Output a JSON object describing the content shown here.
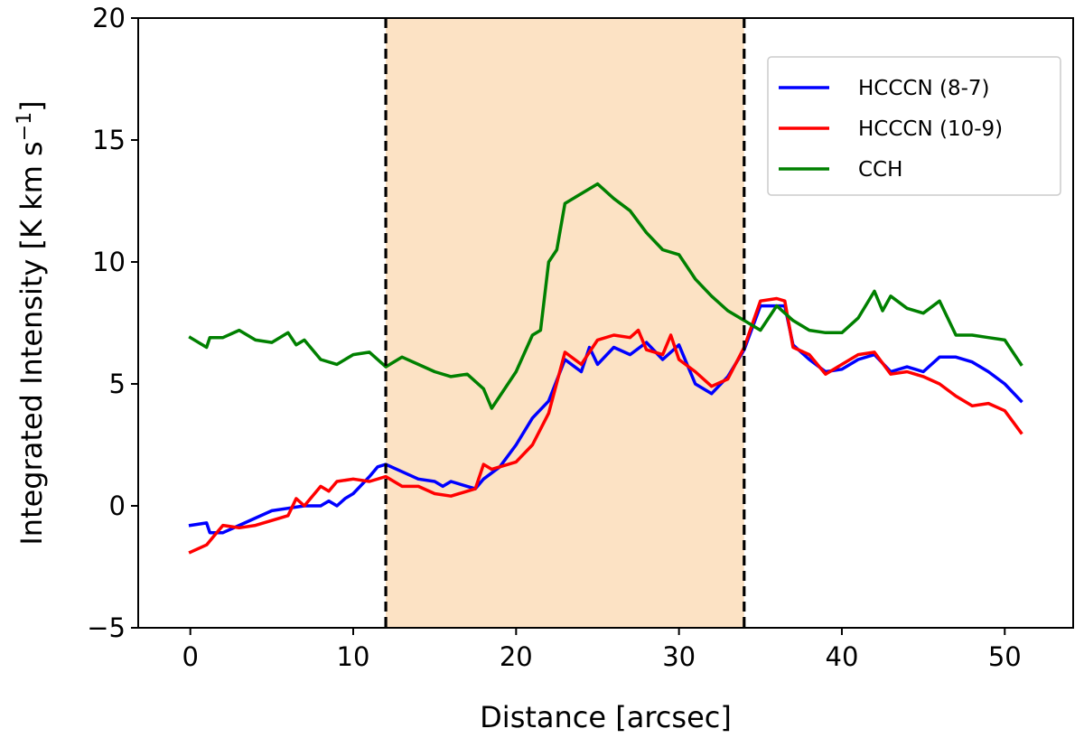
{
  "chart_data": {
    "type": "line",
    "xlabel": "Distance [arcsec]",
    "ylabel_main": "Integrated Intensity [K km s",
    "ylabel_sup": "−1",
    "ylabel_close": "]",
    "xlim": [
      -3.2,
      54.2
    ],
    "ylim": [
      -5,
      20
    ],
    "xticks": [
      0,
      10,
      20,
      30,
      40,
      50
    ],
    "yticks": [
      -5,
      0,
      5,
      10,
      15,
      20
    ],
    "ytick_labels": [
      "−5",
      "0",
      "5",
      "10",
      "15",
      "20"
    ],
    "grid": false,
    "legend_position": "upper-right",
    "shaded_region": {
      "x": [
        12,
        34
      ],
      "color": "#fce2c4"
    },
    "vlines": [
      {
        "x": 12,
        "style": "dashed",
        "color": "#000000"
      },
      {
        "x": 34,
        "style": "dashed",
        "color": "#000000"
      }
    ],
    "series": [
      {
        "name": "HCCCN (8-7)",
        "color": "#0000ff",
        "points": [
          [
            0,
            -0.8
          ],
          [
            1,
            -0.7
          ],
          [
            1.2,
            -1.1
          ],
          [
            2,
            -1.1
          ],
          [
            3,
            -0.8
          ],
          [
            4,
            -0.5
          ],
          [
            5,
            -0.2
          ],
          [
            6,
            -0.1
          ],
          [
            7,
            0.0
          ],
          [
            8,
            0.0
          ],
          [
            8.5,
            0.2
          ],
          [
            9,
            0.0
          ],
          [
            9.5,
            0.3
          ],
          [
            10,
            0.5
          ],
          [
            11,
            1.2
          ],
          [
            11.5,
            1.6
          ],
          [
            12,
            1.7
          ],
          [
            13,
            1.4
          ],
          [
            14,
            1.1
          ],
          [
            15,
            1.0
          ],
          [
            15.5,
            0.8
          ],
          [
            16,
            1.0
          ],
          [
            17,
            0.8
          ],
          [
            17.5,
            0.7
          ],
          [
            18,
            1.1
          ],
          [
            19,
            1.6
          ],
          [
            20,
            2.5
          ],
          [
            21,
            3.6
          ],
          [
            22,
            4.3
          ],
          [
            23,
            6.0
          ],
          [
            24,
            5.5
          ],
          [
            24.5,
            6.5
          ],
          [
            25,
            5.8
          ],
          [
            26,
            6.5
          ],
          [
            27,
            6.2
          ],
          [
            28,
            6.7
          ],
          [
            29,
            6.0
          ],
          [
            30,
            6.6
          ],
          [
            31,
            5.0
          ],
          [
            32,
            4.6
          ],
          [
            33,
            5.3
          ],
          [
            34,
            6.4
          ],
          [
            35,
            8.2
          ],
          [
            36,
            8.2
          ],
          [
            36.5,
            8.2
          ],
          [
            37,
            6.6
          ],
          [
            38,
            6.0
          ],
          [
            39,
            5.5
          ],
          [
            40,
            5.6
          ],
          [
            41,
            6.0
          ],
          [
            42,
            6.2
          ],
          [
            43,
            5.5
          ],
          [
            44,
            5.7
          ],
          [
            45,
            5.5
          ],
          [
            46,
            6.1
          ],
          [
            47,
            6.1
          ],
          [
            48,
            5.9
          ],
          [
            49,
            5.5
          ],
          [
            50,
            5.0
          ],
          [
            51,
            4.3
          ]
        ]
      },
      {
        "name": "HCCCN (10-9)",
        "color": "#ff0000",
        "points": [
          [
            0,
            -1.9
          ],
          [
            1,
            -1.6
          ],
          [
            1.5,
            -1.2
          ],
          [
            2,
            -0.8
          ],
          [
            3,
            -0.9
          ],
          [
            4,
            -0.8
          ],
          [
            5,
            -0.6
          ],
          [
            6,
            -0.4
          ],
          [
            6.5,
            0.3
          ],
          [
            7,
            0.0
          ],
          [
            8,
            0.8
          ],
          [
            8.5,
            0.6
          ],
          [
            9,
            1.0
          ],
          [
            10,
            1.1
          ],
          [
            11,
            1.0
          ],
          [
            12,
            1.2
          ],
          [
            13,
            0.8
          ],
          [
            14,
            0.8
          ],
          [
            15,
            0.5
          ],
          [
            16,
            0.4
          ],
          [
            17,
            0.6
          ],
          [
            17.5,
            0.7
          ],
          [
            18,
            1.7
          ],
          [
            18.5,
            1.5
          ],
          [
            19,
            1.6
          ],
          [
            20,
            1.8
          ],
          [
            21,
            2.5
          ],
          [
            22,
            3.8
          ],
          [
            23,
            6.3
          ],
          [
            24,
            5.8
          ],
          [
            25,
            6.8
          ],
          [
            26,
            7.0
          ],
          [
            27,
            6.9
          ],
          [
            27.5,
            7.2
          ],
          [
            28,
            6.4
          ],
          [
            29,
            6.2
          ],
          [
            29.5,
            7.0
          ],
          [
            30,
            6.0
          ],
          [
            31,
            5.5
          ],
          [
            32,
            4.9
          ],
          [
            33,
            5.2
          ],
          [
            34,
            6.5
          ],
          [
            35,
            8.4
          ],
          [
            36,
            8.5
          ],
          [
            36.5,
            8.4
          ],
          [
            37,
            6.5
          ],
          [
            38,
            6.2
          ],
          [
            39,
            5.4
          ],
          [
            40,
            5.8
          ],
          [
            41,
            6.2
          ],
          [
            42,
            6.3
          ],
          [
            43,
            5.4
          ],
          [
            44,
            5.5
          ],
          [
            45,
            5.3
          ],
          [
            46,
            5.0
          ],
          [
            47,
            4.5
          ],
          [
            48,
            4.1
          ],
          [
            49,
            4.2
          ],
          [
            50,
            3.9
          ],
          [
            51,
            3.0
          ]
        ]
      },
      {
        "name": "CCH",
        "color": "#008000",
        "points": [
          [
            0,
            6.9
          ],
          [
            1,
            6.5
          ],
          [
            1.2,
            6.9
          ],
          [
            2,
            6.9
          ],
          [
            3,
            7.2
          ],
          [
            4,
            6.8
          ],
          [
            5,
            6.7
          ],
          [
            6,
            7.1
          ],
          [
            6.5,
            6.6
          ],
          [
            7,
            6.8
          ],
          [
            8,
            6.0
          ],
          [
            9,
            5.8
          ],
          [
            10,
            6.2
          ],
          [
            11,
            6.3
          ],
          [
            12,
            5.7
          ],
          [
            13,
            6.1
          ],
          [
            14,
            5.8
          ],
          [
            15,
            5.5
          ],
          [
            16,
            5.3
          ],
          [
            17,
            5.4
          ],
          [
            18,
            4.8
          ],
          [
            18.5,
            4.0
          ],
          [
            19,
            4.5
          ],
          [
            20,
            5.5
          ],
          [
            21,
            7.0
          ],
          [
            21.5,
            7.2
          ],
          [
            22,
            10.0
          ],
          [
            22.5,
            10.5
          ],
          [
            23,
            12.4
          ],
          [
            24,
            12.8
          ],
          [
            25,
            13.2
          ],
          [
            26,
            12.6
          ],
          [
            27,
            12.1
          ],
          [
            28,
            11.2
          ],
          [
            29,
            10.5
          ],
          [
            30,
            10.3
          ],
          [
            31,
            9.3
          ],
          [
            32,
            8.6
          ],
          [
            33,
            8.0
          ],
          [
            34,
            7.6
          ],
          [
            35,
            7.2
          ],
          [
            36,
            8.2
          ],
          [
            37,
            7.6
          ],
          [
            38,
            7.2
          ],
          [
            39,
            7.1
          ],
          [
            40,
            7.1
          ],
          [
            41,
            7.7
          ],
          [
            42,
            8.8
          ],
          [
            42.5,
            8.0
          ],
          [
            43,
            8.6
          ],
          [
            44,
            8.1
          ],
          [
            45,
            7.9
          ],
          [
            46,
            8.4
          ],
          [
            47,
            7.0
          ],
          [
            48,
            7.0
          ],
          [
            49,
            6.9
          ],
          [
            50,
            6.8
          ],
          [
            51,
            5.8
          ]
        ]
      }
    ]
  }
}
